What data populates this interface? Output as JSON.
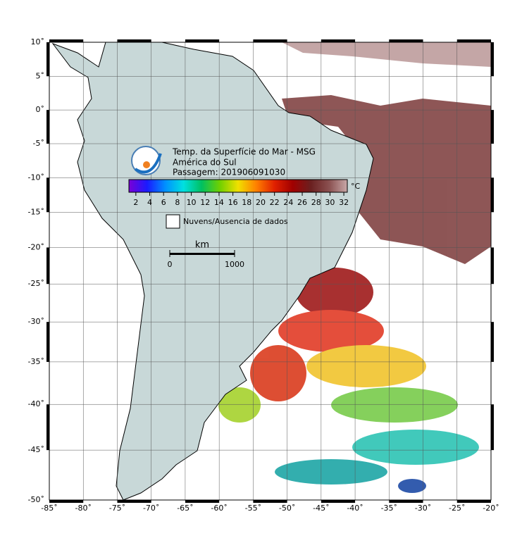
{
  "map": {
    "title": [
      "Temp. da Superfície do Mar - MSG",
      "América do Sul",
      "Passagem: 201906091030"
    ],
    "lon_lim": [
      -85,
      -20
    ],
    "lat_lim": [
      10,
      -50
    ],
    "lon_ticks": [
      {
        "value": -85,
        "label": "-85˚"
      },
      {
        "value": -80,
        "label": "-80˚"
      },
      {
        "value": -75,
        "label": "-75˚"
      },
      {
        "value": -70,
        "label": "-70˚"
      },
      {
        "value": -65,
        "label": "-65˚"
      },
      {
        "value": -60,
        "label": "-60˚"
      },
      {
        "value": -55,
        "label": "-55˚"
      },
      {
        "value": -50,
        "label": "-50˚"
      },
      {
        "value": -45,
        "label": "-45˚"
      },
      {
        "value": -40,
        "label": "-40˚"
      },
      {
        "value": -35,
        "label": "-35˚"
      },
      {
        "value": -30,
        "label": "-30˚"
      },
      {
        "value": -25,
        "label": "-25˚"
      },
      {
        "value": -20,
        "label": "-20˚"
      }
    ],
    "lat_ticks": [
      {
        "value": 10,
        "label": "10˚"
      },
      {
        "value": 5,
        "label": "5˚"
      },
      {
        "value": 0,
        "label": "0˚"
      },
      {
        "value": -5,
        "label": "-5˚"
      },
      {
        "value": -10,
        "label": "-10˚"
      },
      {
        "value": -15,
        "label": "-15˚"
      },
      {
        "value": -20,
        "label": "-20˚"
      },
      {
        "value": -25,
        "label": "-25˚"
      },
      {
        "value": -30,
        "label": "-30˚"
      },
      {
        "value": -35,
        "label": "-35˚"
      },
      {
        "value": -40,
        "label": "-40˚"
      },
      {
        "value": -45,
        "label": "-45˚"
      },
      {
        "value": -50,
        "label": "-50˚"
      }
    ],
    "colorbar": {
      "unit": "°C",
      "lim": [
        1,
        32.5
      ],
      "ticks": [
        2,
        4,
        6,
        8,
        10,
        12,
        14,
        16,
        18,
        20,
        22,
        24,
        26,
        28,
        30,
        32
      ],
      "colormap": [
        "#7a00d6",
        "#1a1aff",
        "#0090ff",
        "#00e0e0",
        "#00c060",
        "#70d000",
        "#f0e000",
        "#ff8000",
        "#e02000",
        "#a00000",
        "#6a2020",
        "#8a5050",
        "#c8a8a8"
      ]
    },
    "legend": "Nuvens/Ausencia de dados",
    "scale": {
      "unit": "km",
      "ticks": [
        0,
        1000
      ]
    }
  }
}
